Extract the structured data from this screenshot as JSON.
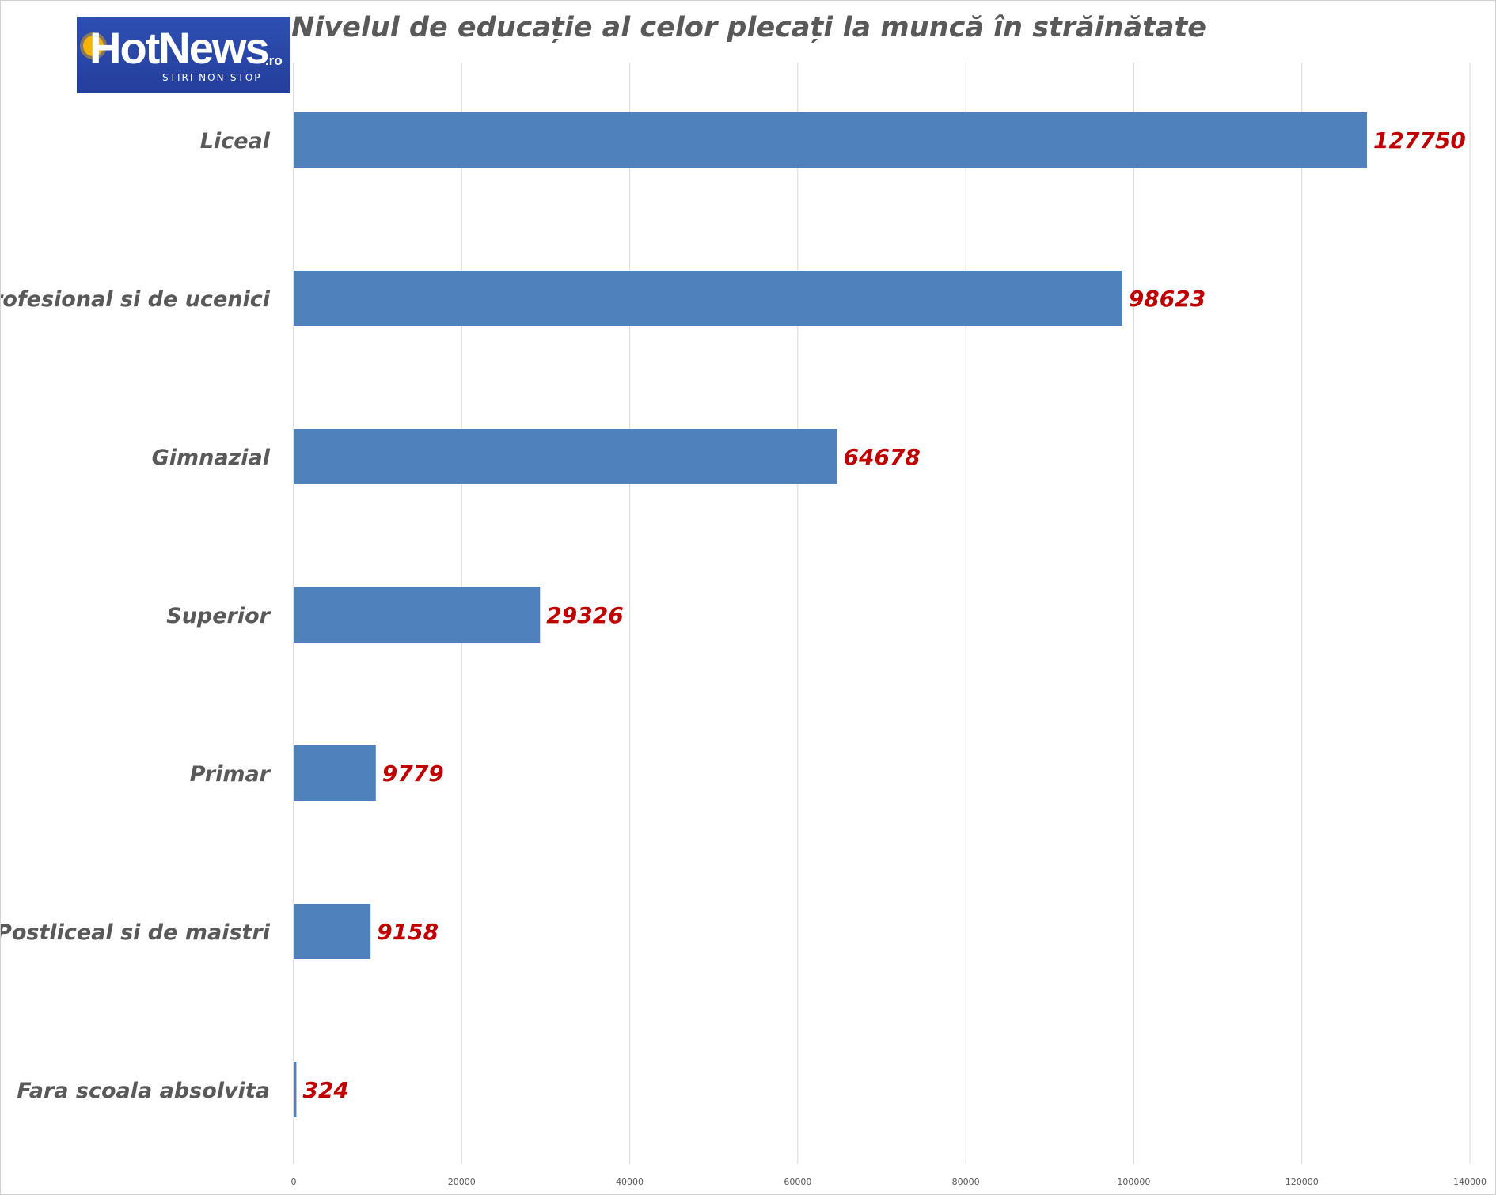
{
  "chart_data": {
    "type": "bar",
    "orientation": "horizontal",
    "title": "Nivelul de educație al celor plecați la muncă în străinătate",
    "categories": [
      "Liceal",
      "Profesional si de ucenici",
      "Gimnazial",
      "Superior",
      "Primar",
      "Postliceal si de maistri",
      "Fara scoala absolvita"
    ],
    "values": [
      127750,
      98623,
      64678,
      29326,
      9779,
      9158,
      324
    ],
    "value_labels": [
      "127750",
      "98623",
      "64678",
      "29326",
      "9779",
      "9158",
      "324"
    ],
    "xlim": [
      0,
      140000
    ],
    "x_ticks": [
      0,
      20000,
      40000,
      60000,
      80000,
      100000,
      120000,
      140000
    ],
    "x_tick_labels": [
      "0",
      "20000",
      "40000",
      "60000",
      "80000",
      "100000",
      "120000",
      "140000"
    ],
    "grid": "vertical",
    "legend": "none",
    "bar_color": "#4f81bd",
    "value_label_color": "#c00000",
    "text_color": "#595959",
    "grid_color": "#d9d9d9"
  },
  "logo": {
    "wordmark": "HotNews",
    "domain": ".ro",
    "tagline": "STIRI NON-STOP",
    "background": "#2b4aab",
    "accent": "#f5b400"
  }
}
